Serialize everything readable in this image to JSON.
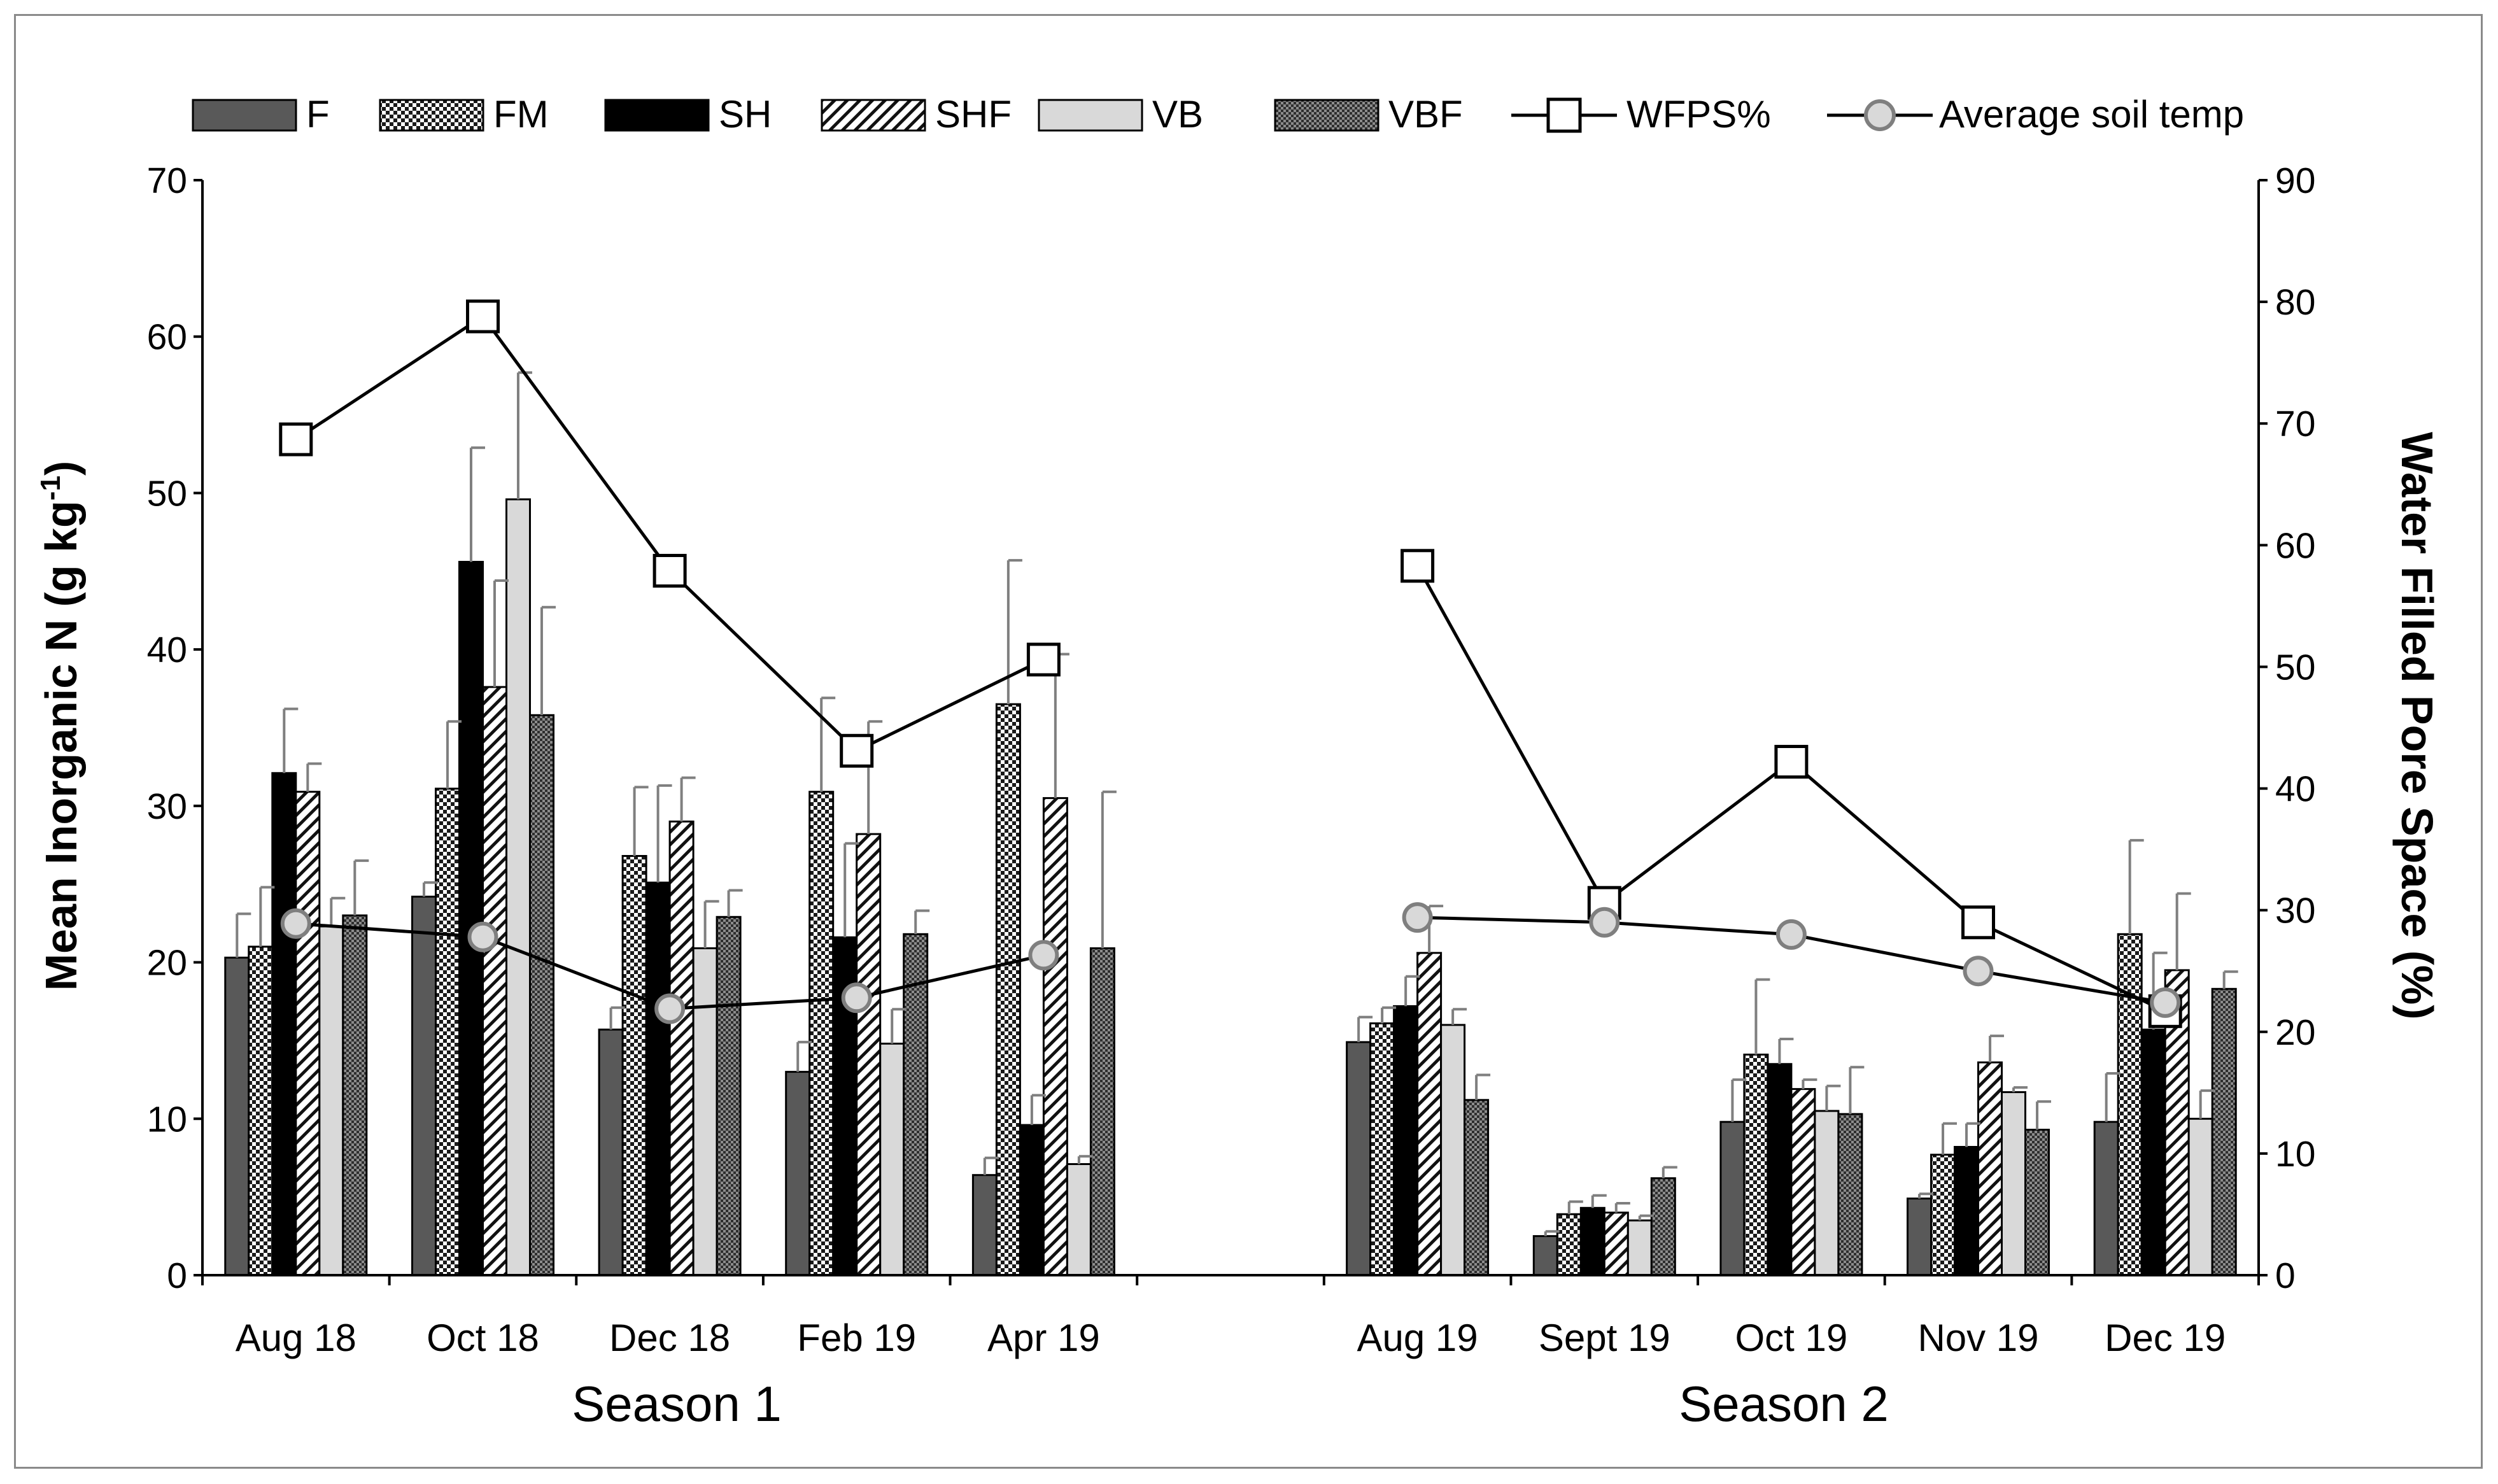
{
  "chart_data": {
    "type": "bar",
    "categories": [
      "Aug 18",
      "Oct 18",
      "Dec 18",
      "Feb 19",
      "Apr 19",
      "Aug 19",
      "Sept 19",
      "Oct 19",
      "Nov 19",
      "Dec 19"
    ],
    "groups": [
      {
        "label": "Season 1",
        "categories": [
          "Aug 18",
          "Oct 18",
          "Dec 18",
          "Feb 19",
          "Apr 19"
        ]
      },
      {
        "label": "Season 2",
        "categories": [
          "Aug 19",
          "Sept 19",
          "Oct 19",
          "Nov 19",
          "Dec 19"
        ]
      }
    ],
    "series": [
      {
        "name": "F",
        "pattern": "solid-dark",
        "values": [
          20.3,
          24.2,
          15.7,
          13.0,
          6.4,
          14.9,
          2.5,
          9.8,
          4.9,
          9.8
        ],
        "errors": [
          2.8,
          0.9,
          1.4,
          1.9,
          1.1,
          1.6,
          0.3,
          2.7,
          0.3,
          3.1
        ]
      },
      {
        "name": "FM",
        "pattern": "checker",
        "values": [
          21.0,
          31.1,
          26.8,
          30.9,
          36.5,
          16.1,
          3.9,
          14.1,
          7.7,
          21.8
        ],
        "errors": [
          3.8,
          4.3,
          4.4,
          6.0,
          9.2,
          1.0,
          0.8,
          4.8,
          2.0,
          6.0
        ]
      },
      {
        "name": "SH",
        "pattern": "solid-black",
        "values": [
          32.1,
          45.6,
          25.1,
          21.6,
          9.6,
          17.2,
          4.3,
          13.5,
          8.2,
          15.7
        ],
        "errors": [
          4.1,
          7.3,
          6.2,
          6.0,
          1.9,
          1.9,
          0.8,
          1.6,
          1.5,
          4.9
        ]
      },
      {
        "name": "SHF",
        "pattern": "hatch",
        "values": [
          30.9,
          37.6,
          29.0,
          28.2,
          30.5,
          20.6,
          4.0,
          11.9,
          13.6,
          19.5
        ],
        "errors": [
          1.8,
          6.8,
          2.8,
          7.2,
          9.2,
          3.0,
          0.6,
          0.6,
          1.7,
          4.9
        ]
      },
      {
        "name": "VB",
        "pattern": "light-gray",
        "values": [
          22.3,
          49.6,
          20.9,
          14.8,
          7.1,
          16.0,
          3.5,
          10.5,
          11.7,
          10.0
        ],
        "errors": [
          1.8,
          8.1,
          3.0,
          2.2,
          0.5,
          1.0,
          0.3,
          1.6,
          0.3,
          1.8
        ]
      },
      {
        "name": "VBF",
        "pattern": "fine-dots",
        "values": [
          23.0,
          35.8,
          22.9,
          21.8,
          20.9,
          11.2,
          6.2,
          10.3,
          9.3,
          18.3
        ],
        "errors": [
          3.5,
          6.9,
          1.7,
          1.5,
          10.0,
          1.6,
          0.7,
          3.0,
          1.8,
          1.1
        ]
      }
    ],
    "lines": [
      {
        "name": "WFPS%",
        "marker": "square",
        "axis": "right",
        "values": [
          68.7,
          78.8,
          57.9,
          43.1,
          50.6,
          58.3,
          30.6,
          42.2,
          29.0,
          21.7
        ]
      },
      {
        "name": "Average soil temp",
        "marker": "circle",
        "axis": "right",
        "values": [
          28.9,
          27.8,
          21.9,
          22.8,
          26.3,
          29.4,
          29.0,
          28.0,
          25.0,
          22.4
        ]
      }
    ],
    "legend": [
      "F",
      "FM",
      "SH",
      "SHF",
      "VB",
      "VBF",
      "WFPS%",
      "Average soil temp"
    ],
    "legend_position": "top",
    "ylabel": "Mean Inorganic N (g kg-1)",
    "ylabel_main": "Mean Inorganic N (g kg",
    "ylabel_sup": "-1",
    "ylabel_close": ")",
    "y2label": "Water Filled Pore Space (%)",
    "ylim": [
      0,
      70
    ],
    "yticks": [
      0,
      10,
      20,
      30,
      40,
      50,
      60,
      70
    ],
    "y2lim": [
      0,
      90
    ],
    "y2ticks": [
      0,
      10,
      20,
      30,
      40,
      50,
      60,
      70,
      80,
      90
    ],
    "grid": false
  }
}
